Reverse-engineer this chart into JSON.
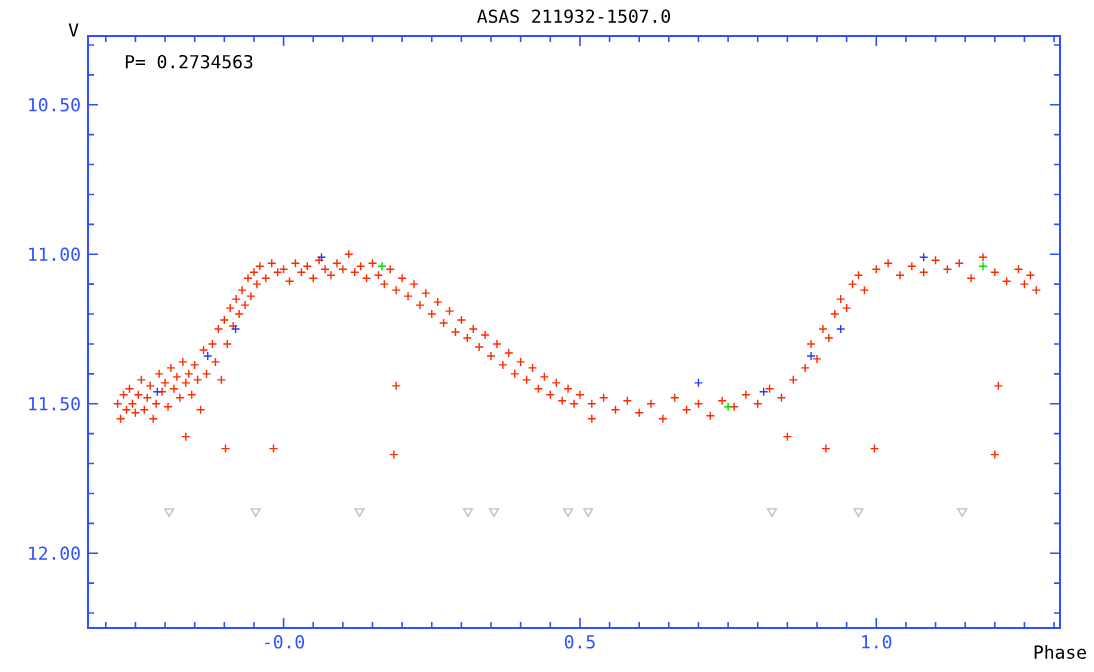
{
  "chart_data": {
    "type": "scatter",
    "title": "ASAS 211932-1507.0",
    "xlabel": "Phase",
    "ylabel": "V",
    "annotations": [
      "P= 0.2734563"
    ],
    "xlim": [
      -0.33,
      1.31
    ],
    "ylim": [
      12.25,
      10.27
    ],
    "xticks": [
      {
        "value": 0,
        "label": "-0.0"
      },
      {
        "value": 0.5,
        "label": "0.5"
      },
      {
        "value": 1.0,
        "label": "1.0"
      },
      {
        "value": -0.3,
        "label": null
      },
      {
        "value": -0.25,
        "label": null
      },
      {
        "value": -0.2,
        "label": null
      },
      {
        "value": -0.15,
        "label": null
      },
      {
        "value": -0.1,
        "label": null
      },
      {
        "value": -0.05,
        "label": null
      },
      {
        "value": 0.05,
        "label": null
      },
      {
        "value": 0.1,
        "label": null
      },
      {
        "value": 0.15,
        "label": null
      },
      {
        "value": 0.2,
        "label": null
      },
      {
        "value": 0.25,
        "label": null
      },
      {
        "value": 0.3,
        "label": null
      },
      {
        "value": 0.35,
        "label": null
      },
      {
        "value": 0.4,
        "label": null
      },
      {
        "value": 0.45,
        "label": null
      },
      {
        "value": 0.55,
        "label": null
      },
      {
        "value": 0.6,
        "label": null
      },
      {
        "value": 0.65,
        "label": null
      },
      {
        "value": 0.7,
        "label": null
      },
      {
        "value": 0.75,
        "label": null
      },
      {
        "value": 0.8,
        "label": null
      },
      {
        "value": 0.85,
        "label": null
      },
      {
        "value": 0.9,
        "label": null
      },
      {
        "value": 0.95,
        "label": null
      },
      {
        "value": 1.05,
        "label": null
      },
      {
        "value": 1.1,
        "label": null
      },
      {
        "value": 1.15,
        "label": null
      },
      {
        "value": 1.2,
        "label": null
      },
      {
        "value": 1.25,
        "label": null
      },
      {
        "value": 1.3,
        "label": null
      }
    ],
    "yticks": [
      {
        "value": 10.5,
        "label": "10.50"
      },
      {
        "value": 11.0,
        "label": "11.00"
      },
      {
        "value": 11.5,
        "label": "11.50"
      },
      {
        "value": 12.0,
        "label": "12.00"
      },
      {
        "value": 10.3,
        "label": null
      },
      {
        "value": 10.4,
        "label": null
      },
      {
        "value": 10.6,
        "label": null
      },
      {
        "value": 10.7,
        "label": null
      },
      {
        "value": 10.8,
        "label": null
      },
      {
        "value": 10.9,
        "label": null
      },
      {
        "value": 11.1,
        "label": null
      },
      {
        "value": 11.2,
        "label": null
      },
      {
        "value": 11.3,
        "label": null
      },
      {
        "value": 11.4,
        "label": null
      },
      {
        "value": 11.6,
        "label": null
      },
      {
        "value": 11.7,
        "label": null
      },
      {
        "value": 11.8,
        "label": null
      },
      {
        "value": 11.9,
        "label": null
      },
      {
        "value": 12.1,
        "label": null
      },
      {
        "value": 12.2,
        "label": null
      }
    ],
    "series": [
      {
        "color": "#ff2a00",
        "marker": "cross",
        "x": [
          -0.28,
          -0.275,
          -0.27,
          -0.265,
          -0.26,
          -0.255,
          -0.25,
          -0.245,
          -0.24,
          -0.235,
          -0.23,
          -0.225,
          -0.22,
          -0.215,
          -0.21,
          -0.205,
          -0.2,
          -0.195,
          -0.19,
          -0.185,
          -0.18,
          -0.175,
          -0.17,
          -0.165,
          -0.16,
          -0.155,
          -0.15,
          -0.145,
          -0.14,
          -0.135,
          -0.13,
          -0.165,
          -0.098,
          -0.017,
          -0.12,
          -0.115,
          -0.11,
          -0.105,
          -0.1,
          -0.095,
          -0.09,
          -0.085,
          -0.08,
          -0.075,
          -0.07,
          -0.065,
          -0.06,
          -0.055,
          -0.05,
          -0.045,
          -0.04,
          -0.03,
          -0.02,
          -0.01,
          0.0,
          0.01,
          0.02,
          0.03,
          0.04,
          0.05,
          0.06,
          0.07,
          0.08,
          0.09,
          0.1,
          0.11,
          0.12,
          0.13,
          0.14,
          0.15,
          0.16,
          0.17,
          0.18,
          0.19,
          0.2,
          0.19,
          0.186,
          0.21,
          0.22,
          0.23,
          0.24,
          0.25,
          0.26,
          0.27,
          0.28,
          0.29,
          0.3,
          0.31,
          0.32,
          0.33,
          0.34,
          0.35,
          0.36,
          0.37,
          0.38,
          0.39,
          0.4,
          0.41,
          0.42,
          0.43,
          0.44,
          0.45,
          0.46,
          0.47,
          0.48,
          0.49,
          0.52,
          0.85,
          0.915,
          0.997,
          0.5,
          0.52,
          0.54,
          0.56,
          0.58,
          0.6,
          0.62,
          0.64,
          0.66,
          0.68,
          0.7,
          0.72,
          0.74,
          0.76,
          0.78,
          0.8,
          0.82,
          0.84,
          0.86,
          0.88,
          0.89,
          0.9,
          0.91,
          0.92,
          0.93,
          0.94,
          0.95,
          0.96,
          0.97,
          0.98,
          1.0,
          1.02,
          1.04,
          1.06,
          1.08,
          1.1,
          1.12,
          1.14,
          1.16,
          1.18,
          1.2,
          1.22,
          1.24,
          1.25,
          1.26,
          1.27,
          1.206,
          1.2
        ],
        "values": [
          11.5,
          11.55,
          11.47,
          11.52,
          11.45,
          11.5,
          11.53,
          11.47,
          11.42,
          11.52,
          11.48,
          11.44,
          11.55,
          11.5,
          11.4,
          11.46,
          11.43,
          11.51,
          11.38,
          11.45,
          11.41,
          11.48,
          11.36,
          11.43,
          11.4,
          11.47,
          11.37,
          11.42,
          11.52,
          11.32,
          11.4,
          11.61,
          11.65,
          11.65,
          11.3,
          11.36,
          11.25,
          11.42,
          11.22,
          11.3,
          11.18,
          11.24,
          11.15,
          11.2,
          11.12,
          11.17,
          11.08,
          11.14,
          11.06,
          11.1,
          11.04,
          11.08,
          11.03,
          11.06,
          11.05,
          11.09,
          11.03,
          11.06,
          11.04,
          11.08,
          11.02,
          11.05,
          11.07,
          11.03,
          11.05,
          11.0,
          11.06,
          11.04,
          11.08,
          11.03,
          11.07,
          11.1,
          11.05,
          11.12,
          11.08,
          11.44,
          11.67,
          11.14,
          11.1,
          11.17,
          11.13,
          11.2,
          11.16,
          11.23,
          11.19,
          11.26,
          11.22,
          11.28,
          11.25,
          11.31,
          11.27,
          11.34,
          11.3,
          11.37,
          11.33,
          11.4,
          11.36,
          11.42,
          11.38,
          11.45,
          11.41,
          11.47,
          11.43,
          11.49,
          11.45,
          11.5,
          11.55,
          11.61,
          11.65,
          11.65,
          11.47,
          11.5,
          11.48,
          11.52,
          11.49,
          11.53,
          11.5,
          11.55,
          11.48,
          11.52,
          11.5,
          11.54,
          11.49,
          11.51,
          11.47,
          11.5,
          11.45,
          11.48,
          11.42,
          11.38,
          11.3,
          11.35,
          11.25,
          11.28,
          11.2,
          11.15,
          11.18,
          11.1,
          11.07,
          11.12,
          11.05,
          11.03,
          11.07,
          11.04,
          11.06,
          11.02,
          11.05,
          11.03,
          11.08,
          11.01,
          11.06,
          11.09,
          11.05,
          11.1,
          11.07,
          11.12,
          11.44,
          11.67
        ]
      },
      {
        "color": "#2040ff",
        "marker": "cross",
        "x": [
          -0.213,
          -0.128,
          -0.081,
          0.064,
          0.7,
          0.81,
          0.89,
          0.94,
          1.08
        ],
        "values": [
          11.46,
          11.34,
          11.25,
          11.01,
          11.43,
          11.46,
          11.34,
          11.25,
          11.01
        ]
      },
      {
        "color": "#00dd00",
        "marker": "cross",
        "x": [
          0.166,
          0.75,
          1.18
        ],
        "values": [
          11.04,
          11.51,
          11.04
        ]
      },
      {
        "color": "#c0c0c0",
        "marker": "triangle",
        "x": [
          -0.193,
          -0.047,
          0.128,
          0.311,
          0.355,
          0.48,
          0.514,
          0.824,
          0.97,
          1.145
        ],
        "values": [
          11.86,
          11.86,
          11.86,
          11.86,
          11.86,
          11.86,
          11.86,
          11.86,
          11.86,
          11.86
        ]
      }
    ]
  }
}
